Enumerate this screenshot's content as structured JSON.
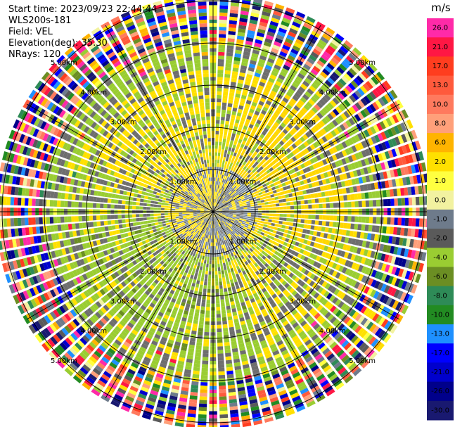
{
  "header": {
    "start_time": "Start time: 2023/09/23 22:44:44",
    "instrument": "WLS200s-181",
    "field": "Field: VEL",
    "elevation": "Elevation(deg): 35.30",
    "nrays": "NRays: 120"
  },
  "chart_data": {
    "type": "heatmap",
    "projection": "polar-ppi",
    "field": "VEL",
    "units": "m/s",
    "range_unit": "km",
    "range_ring_labels": [
      "1.00km",
      "2.00km",
      "3.00km",
      "4.00km",
      "5.00km"
    ],
    "range_rings_km": [
      1,
      2,
      3,
      4,
      5
    ],
    "radial_lines_deg": [
      0,
      30,
      60,
      90,
      120,
      150,
      180,
      210,
      240,
      270,
      300,
      330
    ],
    "max_range_km": 5.1,
    "nrays": 120,
    "colorbar": {
      "title": "m/s",
      "ticks": [
        "26.0",
        "21.0",
        "17.0",
        "13.0",
        "10.0",
        "8.0",
        "6.0",
        "2.0",
        "1.0",
        "0.0",
        "-1.0",
        "-2.0",
        "-4.0",
        "-6.0",
        "-8.0",
        "-10.0",
        "-13.0",
        "-17.0",
        "-21.0",
        "-26.0",
        "-30.0"
      ],
      "colors": [
        "#ff2aa8",
        "#ff1744",
        "#ff3d1f",
        "#ff5a3c",
        "#ff7a5e",
        "#ffa07a",
        "#ffb400",
        "#ffe000",
        "#ffff40",
        "#f2f2a0",
        "#6e7b8b",
        "#5a5a5a",
        "#9acd32",
        "#6b8e23",
        "#2e8b57",
        "#228b22",
        "#1e90ff",
        "#0000ff",
        "#0000cd",
        "#00008b",
        "#191970"
      ]
    },
    "regions": [
      {
        "range_km": [
          0,
          1.0
        ],
        "description": "inner",
        "dominant": [
          "yellow",
          "gray",
          "slate"
        ]
      },
      {
        "range_km": [
          1.0,
          3.2
        ],
        "description": "mid",
        "dominant": [
          "yellow",
          "yellowgreen",
          "gray"
        ]
      },
      {
        "range_km": [
          3.2,
          4.0
        ],
        "description": "outer-mid",
        "dominant": [
          "yellowgreen",
          "gray",
          "yellow"
        ]
      },
      {
        "range_km": [
          4.0,
          5.1
        ],
        "description": "noise",
        "dominant": [
          "random"
        ]
      }
    ]
  }
}
